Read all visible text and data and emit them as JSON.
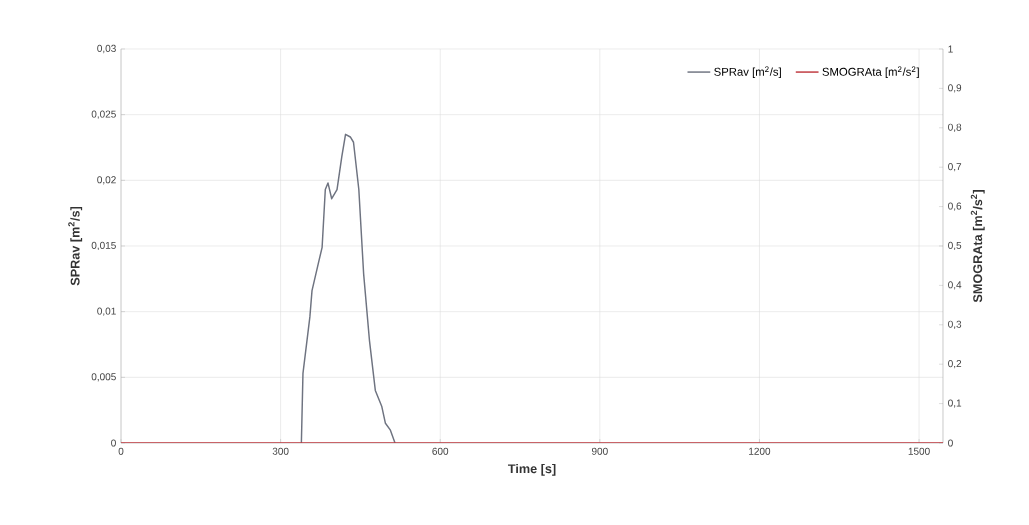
{
  "chart_data": {
    "type": "line",
    "xlabel": "Time [s]",
    "ylabel": "SPRav [m$^{2}$/s]",
    "y2label": "SMOGRAta [m$^{2}$/s$^{2}$]",
    "series": [
      {
        "name": "SPRav [m$^{2}$/s]",
        "color": "#6e7380",
        "x": [
          339,
          342,
          355,
          359,
          371,
          378,
          384,
          389,
          396,
          406,
          415,
          422,
          431,
          437,
          447,
          456,
          467,
          478,
          490,
          497,
          506,
          515
        ],
        "values": [
          0,
          0.0053,
          0.0096,
          0.0116,
          0.0137,
          0.0149,
          0.0193,
          0.0198,
          0.0186,
          0.0193,
          0.0218,
          0.0235,
          0.0233,
          0.0229,
          0.0193,
          0.0129,
          0.0078,
          0.004,
          0.0028,
          0.0015,
          0.001,
          0
        ]
      },
      {
        "name": "SMOGRAta [m$^{2}$/s$^{2}$]",
        "color": "#c0393f",
        "axis": "y2",
        "x": [
          0,
          1545
        ],
        "values": [
          0,
          0
        ]
      }
    ],
    "xlim": [
      0,
      1545
    ],
    "xticks": [
      0,
      300,
      600,
      900,
      1200,
      1500
    ],
    "ylim": [
      0,
      0.03
    ],
    "yticks": [
      0,
      {
        "value": 0.005,
        "label": "0,005"
      },
      {
        "value": 0.01,
        "label": "0,01"
      },
      {
        "value": 0.015,
        "label": "0,015"
      },
      {
        "value": 0.02,
        "label": "0,02"
      },
      {
        "value": 0.025,
        "label": "0,025"
      },
      {
        "value": 0.03,
        "label": "0,03"
      }
    ],
    "y2lim": [
      0,
      1
    ],
    "y2ticks": [
      0,
      {
        "value": 0.1,
        "label": "0,1"
      },
      {
        "value": 0.2,
        "label": "0,2"
      },
      {
        "value": 0.3,
        "label": "0,3"
      },
      {
        "value": 0.4,
        "label": "0,4"
      },
      {
        "value": 0.5,
        "label": "0,5"
      },
      {
        "value": 0.6,
        "label": "0,6"
      },
      {
        "value": 0.7,
        "label": "0,7"
      },
      {
        "value": 0.8,
        "label": "0,8"
      },
      {
        "value": 0.9,
        "label": "0,9"
      },
      1
    ],
    "grid": true,
    "legend": "top right",
    "marker": "none",
    "line_style": "solid"
  }
}
